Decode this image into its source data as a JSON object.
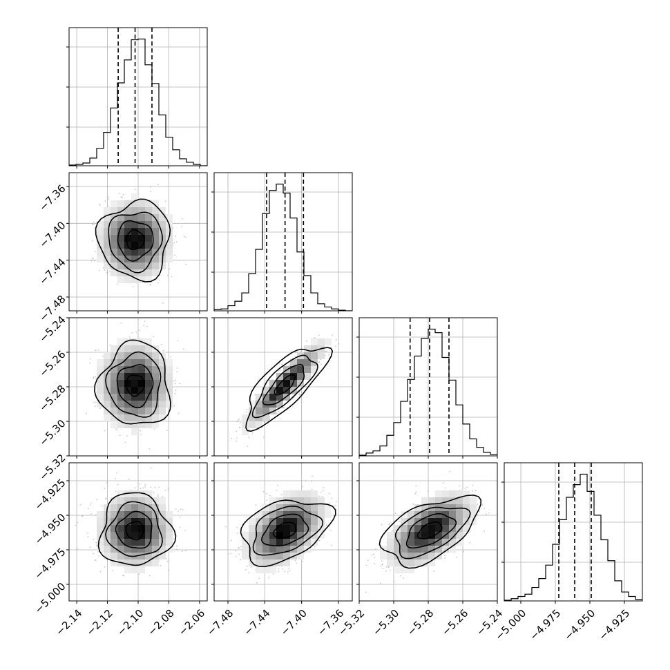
{
  "chart_data": {
    "type": "corner",
    "title": "",
    "grid": true,
    "params": [
      {
        "range": [
          -2.145,
          -2.055
        ],
        "ticks": [
          "-2.14",
          "-2.12",
          "-2.10",
          "-2.08",
          "-2.06"
        ],
        "tick_values": [
          -2.14,
          -2.12,
          -2.1,
          -2.08,
          -2.06
        ],
        "quantiles": [
          -2.113,
          -2.102,
          -2.091
        ],
        "hist_counts": [
          1,
          2,
          4,
          11,
          25,
          48,
          83,
          119,
          152,
          181,
          182,
          145,
          118,
          73,
          41,
          23,
          10,
          5,
          2,
          0
        ],
        "mean": -2.102,
        "std": 0.011
      },
      {
        "range": [
          -7.495,
          -7.345
        ],
        "ticks": [
          "-7.48",
          "-7.44",
          "-7.40",
          "-7.36"
        ],
        "tick_values": [
          -7.48,
          -7.44,
          -7.4,
          -7.36
        ],
        "quantiles": [
          -7.438,
          -7.418,
          -7.398
        ],
        "hist_counts": [
          2,
          3,
          8,
          15,
          28,
          58,
          96,
          152,
          188,
          198,
          184,
          145,
          92,
          55,
          28,
          11,
          6,
          3,
          1,
          0
        ],
        "mean": -7.418,
        "std": 0.02
      },
      {
        "range": [
          -5.32,
          -5.24
        ],
        "ticks": [
          "-5.32",
          "-5.30",
          "-5.28",
          "-5.26",
          "-5.24"
        ],
        "tick_values": [
          -5.32,
          -5.3,
          -5.28,
          -5.26,
          -5.24
        ],
        "quantiles": [
          -5.2905,
          -5.2792,
          -5.268
        ],
        "hist_counts": [
          1,
          4,
          7,
          14,
          29,
          47,
          77,
          108,
          141,
          166,
          179,
          174,
          139,
          107,
          72,
          45,
          24,
          12,
          5,
          2
        ],
        "mean": -5.279,
        "std": 0.0115
      },
      {
        "range": [
          -5.012,
          -4.912
        ],
        "ticks": [
          "-5.000",
          "-4.975",
          "-4.950",
          "-4.925"
        ],
        "tick_values": [
          -5.0,
          -4.975,
          -4.95,
          -4.925
        ],
        "quantiles": [
          -4.9725,
          -4.961,
          -4.949
        ],
        "hist_counts": [
          1,
          3,
          6,
          9,
          18,
          30,
          48,
          76,
          109,
          139,
          156,
          170,
          147,
          115,
          82,
          54,
          27,
          12,
          6,
          2
        ],
        "mean": -4.961,
        "std": 0.0125
      }
    ],
    "correlations": [
      [
        1.0,
        0.0,
        0.0,
        0.0
      ],
      [
        0.0,
        1.0,
        0.9,
        0.45
      ],
      [
        0.0,
        0.9,
        1.0,
        0.55
      ],
      [
        0.0,
        0.45,
        0.55,
        1.0
      ]
    ],
    "left_axis_ticks": {
      "row1": [
        "-7.36",
        "-7.40",
        "-7.44",
        "-7.48"
      ],
      "row2": [
        "-5.24",
        "-5.26",
        "-5.28",
        "-5.30",
        "-5.32"
      ],
      "row3": [
        "-4.925",
        "-4.950",
        "-4.975",
        "-5.000"
      ]
    },
    "colors": {
      "frame": "#000000",
      "grid": "#b0b0b0",
      "hist": "#000000",
      "points": "#9a9a9a",
      "density_dark": "#000000",
      "density_light": "#ffffff"
    },
    "contour_levels": [
      0.118,
      0.393,
      0.675,
      0.865
    ]
  }
}
